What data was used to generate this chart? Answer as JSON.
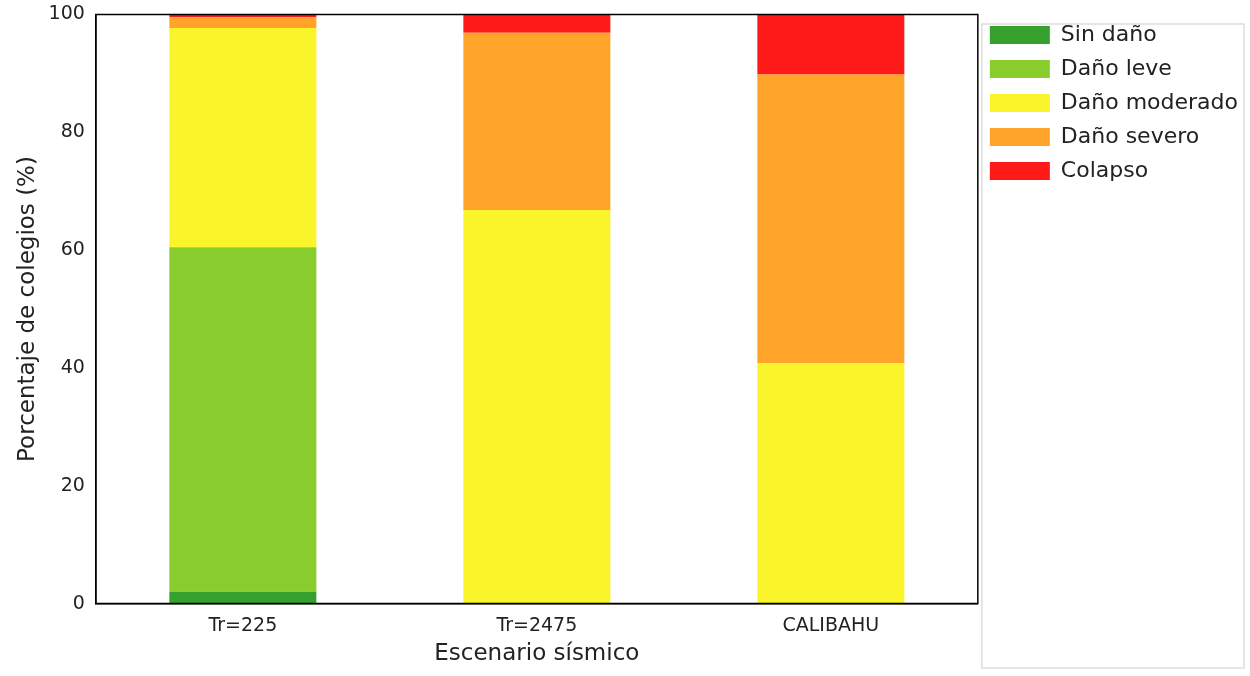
{
  "chart_data": {
    "type": "bar",
    "stacked": true,
    "xlabel": "Escenario sísmico",
    "ylabel": "Porcentaje de colegios (%)",
    "categories": [
      "Tr=225",
      "Tr=2475",
      "CALIBAHU"
    ],
    "series": [
      {
        "name": "Sin daño",
        "color": "#35a02c",
        "values": [
          2,
          0,
          0
        ]
      },
      {
        "name": "Daño leve",
        "color": "#88cc2e",
        "values": [
          58.5,
          0,
          0
        ]
      },
      {
        "name": "Daño moderado",
        "color": "#faf42a",
        "values": [
          37.2,
          66.8,
          40.8
        ]
      },
      {
        "name": "Daño severo",
        "color": "#ffa428",
        "values": [
          1.8,
          30.1,
          49
        ]
      },
      {
        "name": "Colapso",
        "color": "#ff1a1a",
        "values": [
          0.5,
          3.1,
          10.2
        ]
      }
    ],
    "ylim": [
      0,
      100
    ],
    "yticks": [
      0,
      20,
      40,
      60,
      80,
      100
    ],
    "grid": false,
    "legend": "top right"
  }
}
